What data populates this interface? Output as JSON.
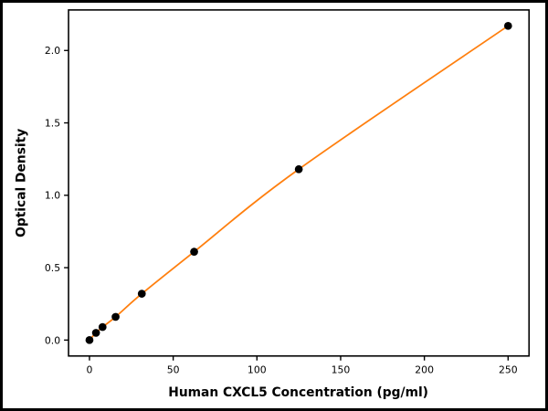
{
  "chart_data": {
    "type": "scatter",
    "title": "",
    "xlabel": "Human CXCL5 Concentration (pg/ml)",
    "ylabel": "Optical Density",
    "x": [
      0,
      3.9,
      7.8,
      15.6,
      31.25,
      62.5,
      125,
      250
    ],
    "y": [
      0.0,
      0.05,
      0.09,
      0.16,
      0.32,
      0.61,
      1.18,
      2.17
    ],
    "xlim": [
      -12.5,
      262.5
    ],
    "ylim": [
      -0.11,
      2.28
    ],
    "xticks": [
      0,
      50,
      100,
      150,
      200,
      250
    ],
    "yticks": [
      0.0,
      0.5,
      1.0,
      1.5,
      2.0
    ],
    "grid": false,
    "legend": "none",
    "line_color": "#ff7f0e",
    "marker_color": "#000000",
    "axis_color": "#000000",
    "background_color": "#ffffff"
  }
}
